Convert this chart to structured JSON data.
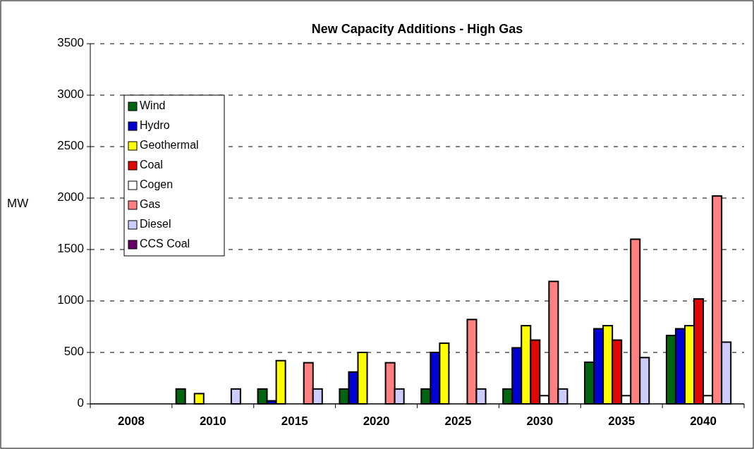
{
  "chart_data": {
    "type": "bar",
    "title": "New Capacity Additions - High Gas",
    "ylabel": "MW",
    "categories": [
      "2008",
      "2010",
      "2015",
      "2020",
      "2025",
      "2030",
      "2035",
      "2040"
    ],
    "series": [
      {
        "name": "Wind",
        "color": "#006411",
        "values": [
          0,
          145,
          145,
          145,
          145,
          145,
          405,
          665
        ]
      },
      {
        "name": "Hydro",
        "color": "#0000d0",
        "values": [
          0,
          0,
          30,
          310,
          500,
          545,
          730,
          730
        ]
      },
      {
        "name": "Geothermal",
        "color": "#ffff00",
        "values": [
          0,
          100,
          420,
          500,
          590,
          760,
          760,
          760
        ]
      },
      {
        "name": "Coal",
        "color": "#dd0806",
        "values": [
          0,
          0,
          0,
          0,
          0,
          620,
          620,
          1020
        ]
      },
      {
        "name": "Cogen",
        "color": "#ffffff",
        "values": [
          0,
          0,
          0,
          0,
          0,
          80,
          80,
          80
        ]
      },
      {
        "name": "Gas",
        "color": "#ff8080",
        "values": [
          0,
          0,
          400,
          400,
          820,
          1190,
          1600,
          2020
        ]
      },
      {
        "name": "Diesel",
        "color": "#ccccff",
        "values": [
          0,
          145,
          145,
          145,
          145,
          145,
          450,
          600
        ]
      },
      {
        "name": "CCS Coal",
        "color": "#660066",
        "values": [
          0,
          0,
          0,
          0,
          0,
          0,
          0,
          0
        ]
      }
    ],
    "ylim": [
      0,
      3500
    ],
    "yticks": [
      0,
      500,
      1000,
      1500,
      2000,
      2500,
      3000,
      3500
    ],
    "grid": "y",
    "legend": "top left"
  }
}
